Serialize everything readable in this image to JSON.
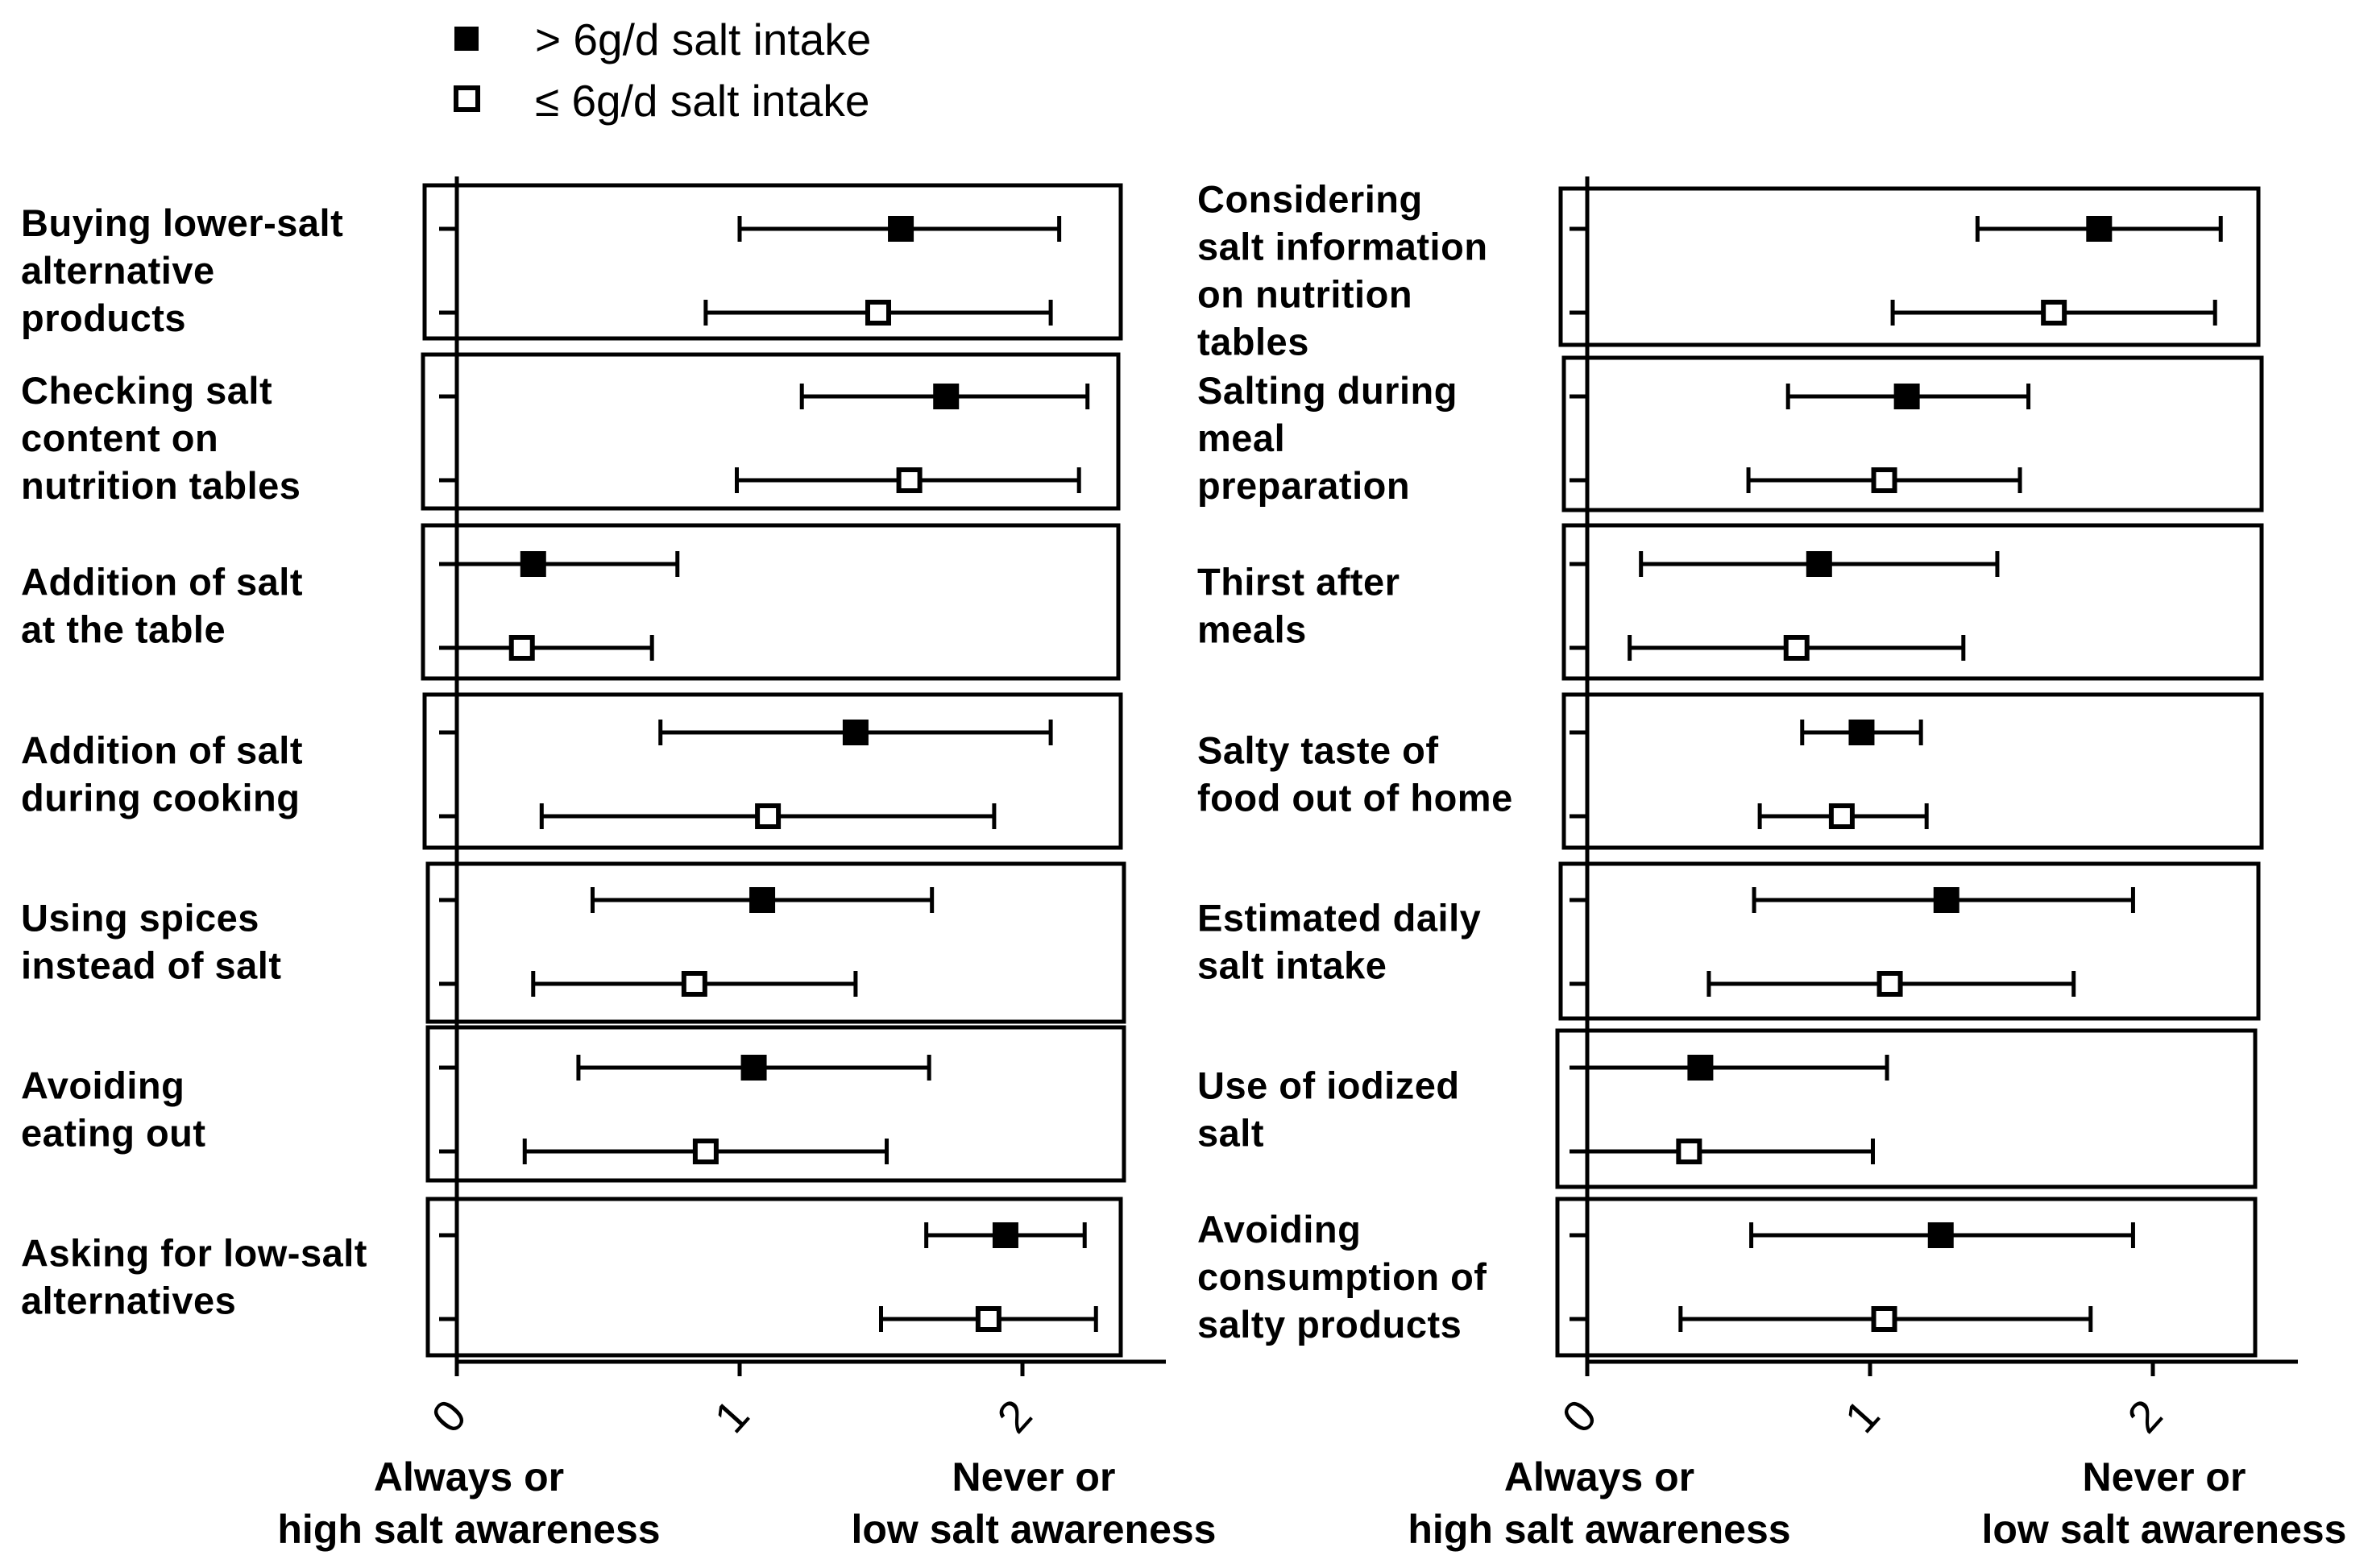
{
  "legend": [
    {
      "name": "> 6g/d salt intake",
      "marker": "filled-square"
    },
    {
      "name": "≤ 6g/d salt intake",
      "marker": "open-square"
    }
  ],
  "chart_data": [
    {
      "type": "forest",
      "series": [
        "> 6g/d salt intake",
        "≤ 6g/d salt intake"
      ],
      "xlim": [
        0,
        2.5
      ],
      "xticks": [
        "0",
        "1",
        "2"
      ],
      "xlabel_left": [
        "Always or",
        "high salt awareness"
      ],
      "xlabel_right": [
        "Never or",
        "low salt awareness"
      ],
      "categories": [
        {
          "label": [
            "Buying lower-salt",
            "alternative",
            "products"
          ],
          "points": [
            {
              "mean": 1.57,
              "lo": 1.0,
              "hi": 2.13
            },
            {
              "mean": 1.49,
              "lo": 0.88,
              "hi": 2.1
            }
          ]
        },
        {
          "label": [
            "Checking salt",
            "content on",
            "nutrition tables"
          ],
          "points": [
            {
              "mean": 1.73,
              "lo": 1.22,
              "hi": 2.23
            },
            {
              "mean": 1.6,
              "lo": 0.99,
              "hi": 2.2
            }
          ]
        },
        {
          "label": [
            "Addition of salt",
            "at the table"
          ],
          "points": [
            {
              "mean": 0.27,
              "lo": 0.0,
              "hi": 0.78
            },
            {
              "mean": 0.23,
              "lo": 0.0,
              "hi": 0.69
            }
          ]
        },
        {
          "label": [
            "Addition of salt",
            "during cooking"
          ],
          "points": [
            {
              "mean": 1.41,
              "lo": 0.72,
              "hi": 2.1
            },
            {
              "mean": 1.1,
              "lo": 0.3,
              "hi": 1.9
            }
          ]
        },
        {
          "label": [
            "Using spices",
            "instead of salt"
          ],
          "points": [
            {
              "mean": 1.08,
              "lo": 0.48,
              "hi": 1.68
            },
            {
              "mean": 0.84,
              "lo": 0.27,
              "hi": 1.41
            }
          ]
        },
        {
          "label": [
            "Avoiding",
            "eating out"
          ],
          "points": [
            {
              "mean": 1.05,
              "lo": 0.43,
              "hi": 1.67
            },
            {
              "mean": 0.88,
              "lo": 0.24,
              "hi": 1.52
            }
          ]
        },
        {
          "label": [
            "Asking for low-salt",
            "alternatives"
          ],
          "points": [
            {
              "mean": 1.94,
              "lo": 1.66,
              "hi": 2.22
            },
            {
              "mean": 1.88,
              "lo": 1.5,
              "hi": 2.26
            }
          ]
        }
      ]
    },
    {
      "type": "forest",
      "series": [
        "> 6g/d salt intake",
        "≤ 6g/d salt intake"
      ],
      "xlim": [
        0,
        2.5
      ],
      "xticks": [
        "0",
        "1",
        "2"
      ],
      "xlabel_left": [
        "Always or",
        "high salt awareness"
      ],
      "xlabel_right": [
        "Never or",
        "low salt awareness"
      ],
      "categories": [
        {
          "label": [
            "Considering",
            "salt information",
            "on nutrition",
            "tables"
          ],
          "points": [
            {
              "mean": 1.81,
              "lo": 1.38,
              "hi": 2.24
            },
            {
              "mean": 1.65,
              "lo": 1.08,
              "hi": 2.22
            }
          ]
        },
        {
          "label": [
            "Salting during",
            "meal",
            "preparation"
          ],
          "points": [
            {
              "mean": 1.13,
              "lo": 0.71,
              "hi": 1.56
            },
            {
              "mean": 1.05,
              "lo": 0.57,
              "hi": 1.53
            }
          ]
        },
        {
          "label": [
            "Thirst after",
            "meals"
          ],
          "points": [
            {
              "mean": 0.82,
              "lo": 0.19,
              "hi": 1.45
            },
            {
              "mean": 0.74,
              "lo": 0.15,
              "hi": 1.33
            }
          ]
        },
        {
          "label": [
            "Salty taste of",
            "food out of home"
          ],
          "points": [
            {
              "mean": 0.97,
              "lo": 0.76,
              "hi": 1.18
            },
            {
              "mean": 0.9,
              "lo": 0.61,
              "hi": 1.2
            }
          ]
        },
        {
          "label": [
            "Estimated daily",
            "salt intake"
          ],
          "points": [
            {
              "mean": 1.27,
              "lo": 0.59,
              "hi": 1.93
            },
            {
              "mean": 1.07,
              "lo": 0.43,
              "hi": 1.72
            }
          ]
        },
        {
          "label": [
            "Use of iodized",
            "salt"
          ],
          "points": [
            {
              "mean": 0.4,
              "lo": 0.0,
              "hi": 1.06
            },
            {
              "mean": 0.36,
              "lo": 0.0,
              "hi": 1.01
            }
          ]
        },
        {
          "label": [
            "Avoiding",
            "consumption of",
            "salty products"
          ],
          "points": [
            {
              "mean": 1.25,
              "lo": 0.58,
              "hi": 1.93
            },
            {
              "mean": 1.05,
              "lo": 0.33,
              "hi": 1.78
            }
          ]
        }
      ]
    }
  ]
}
